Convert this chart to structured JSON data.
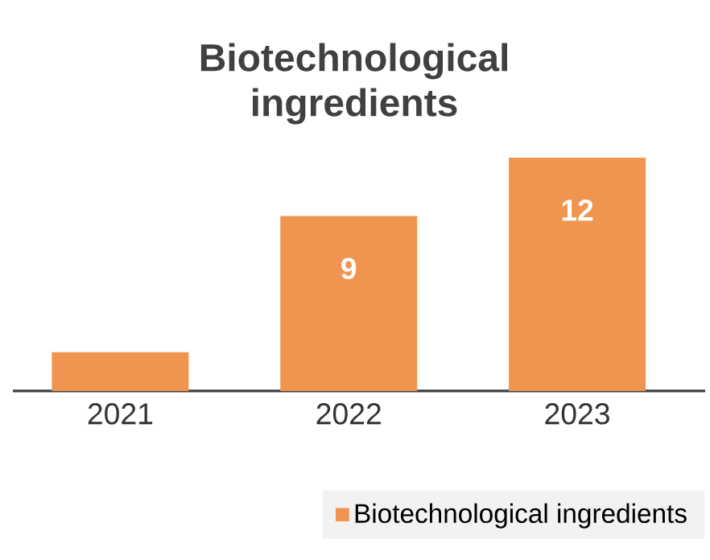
{
  "chart_data": {
    "type": "bar",
    "title": "Biotechnological ingredients",
    "categories": [
      "2021",
      "2022",
      "2023"
    ],
    "series": [
      {
        "name": "Biotechnological ingredients",
        "color": "#f0954f",
        "values": [
          2,
          9,
          12
        ],
        "value_labels": [
          null,
          "9",
          "12"
        ]
      }
    ],
    "legend": "bottom right"
  }
}
